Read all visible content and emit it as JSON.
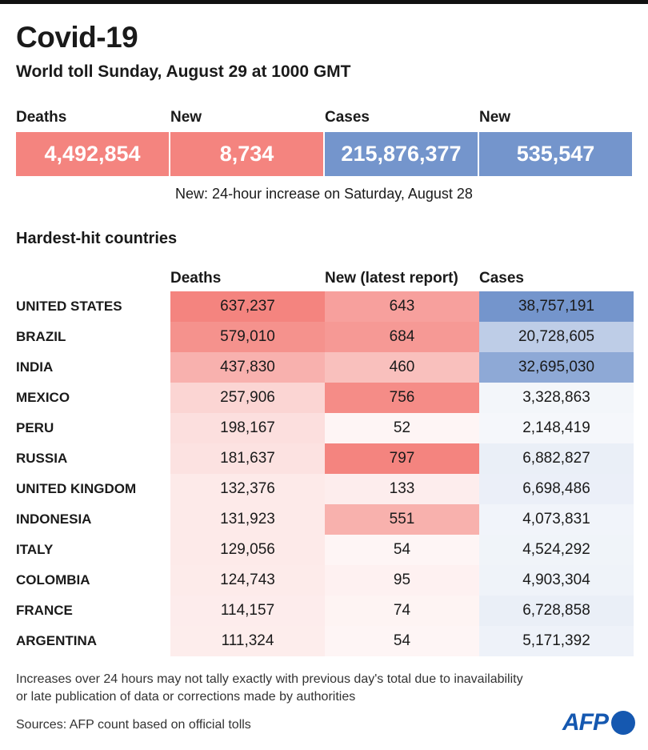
{
  "header": {
    "title": "Covid-19",
    "subtitle": "World toll Sunday, August 29 at 1000 GMT"
  },
  "key_figures": [
    {
      "label": "Deaths",
      "value": "4,492,854",
      "color": "#f4847f"
    },
    {
      "label": "New",
      "value": "8,734",
      "color": "#f4847f"
    },
    {
      "label": "Cases",
      "value": "215,876,377",
      "color": "#7495cc"
    },
    {
      "label": "New",
      "value": "535,547",
      "color": "#7495cc"
    }
  ],
  "new_note": "New: 24-hour increase on Saturday, August 28",
  "section_title": "Hardest-hit countries",
  "chart_data": {
    "type": "table",
    "columns": [
      "Deaths",
      "New (latest report)",
      "Cases"
    ],
    "colors": {
      "deaths": "#f4847f",
      "new": "#f4847f",
      "cases": "#7495cc"
    },
    "rows": [
      {
        "country": "UNITED STATES",
        "deaths": "637,237",
        "new": "643",
        "cases": "38,757,191"
      },
      {
        "country": "BRAZIL",
        "deaths": "579,010",
        "new": "684",
        "cases": "20,728,605"
      },
      {
        "country": "INDIA",
        "deaths": "437,830",
        "new": "460",
        "cases": "32,695,030"
      },
      {
        "country": "MEXICO",
        "deaths": "257,906",
        "new": "756",
        "cases": "3,328,863"
      },
      {
        "country": "PERU",
        "deaths": "198,167",
        "new": "52",
        "cases": "2,148,419"
      },
      {
        "country": "RUSSIA",
        "deaths": "181,637",
        "new": "797",
        "cases": "6,882,827"
      },
      {
        "country": "UNITED KINGDOM",
        "deaths": "132,376",
        "new": "133",
        "cases": "6,698,486"
      },
      {
        "country": "INDONESIA",
        "deaths": "131,923",
        "new": "551",
        "cases": "4,073,831"
      },
      {
        "country": "ITALY",
        "deaths": "129,056",
        "new": "54",
        "cases": "4,524,292"
      },
      {
        "country": "COLOMBIA",
        "deaths": "124,743",
        "new": "95",
        "cases": "4,903,304"
      },
      {
        "country": "FRANCE",
        "deaths": "114,157",
        "new": "74",
        "cases": "6,728,858"
      },
      {
        "country": "ARGENTINA",
        "deaths": "111,324",
        "new": "54",
        "cases": "5,171,392"
      }
    ]
  },
  "footer": {
    "note_line1": "Increases over 24 hours may not tally exactly with previous day's total due to inavailability",
    "note_line2": "or late publication of data or corrections made by authorities",
    "sources": "Sources: AFP count based on official tolls",
    "logo": "AFP"
  }
}
